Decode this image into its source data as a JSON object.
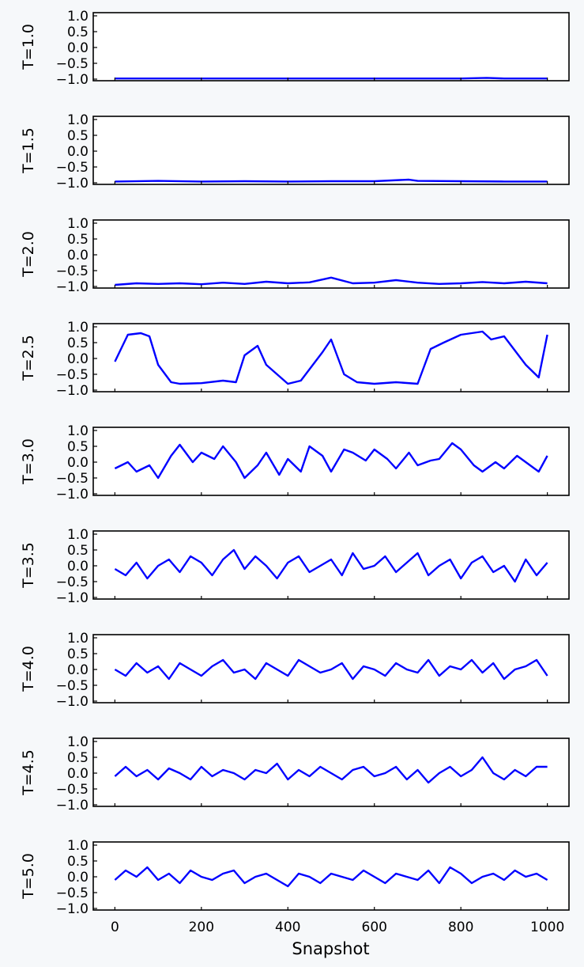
{
  "chart_data": {
    "type": "line",
    "subplot_count": 9,
    "xlabel": "Snapshot",
    "xlim": [
      -50,
      1050
    ],
    "xticks": [
      0,
      200,
      400,
      600,
      800,
      1000
    ],
    "ylim": [
      -1.05,
      1.1
    ],
    "yticks": [
      1.0,
      0.5,
      0.0,
      -0.5,
      -1.0
    ],
    "ytick_labels": [
      "1.0",
      "0.5",
      "0.0",
      "−0.5",
      "−1.0"
    ],
    "line_color": "#0000ff",
    "panels": [
      {
        "label": "T=1.0",
        "x": [
          0,
          100,
          200,
          300,
          400,
          500,
          600,
          700,
          800,
          860,
          900,
          950,
          1000
        ],
        "y": [
          -0.98,
          -0.98,
          -0.98,
          -0.98,
          -0.98,
          -0.98,
          -0.98,
          -0.98,
          -0.98,
          -0.96,
          -0.98,
          -0.98,
          -0.98
        ]
      },
      {
        "label": "T=1.5",
        "x": [
          0,
          100,
          200,
          300,
          400,
          500,
          600,
          680,
          700,
          800,
          900,
          1000
        ],
        "y": [
          -0.96,
          -0.94,
          -0.96,
          -0.95,
          -0.96,
          -0.95,
          -0.95,
          -0.9,
          -0.94,
          -0.95,
          -0.96,
          -0.96
        ]
      },
      {
        "label": "T=2.0",
        "x": [
          0,
          50,
          100,
          150,
          200,
          250,
          300,
          350,
          400,
          450,
          500,
          550,
          600,
          650,
          700,
          750,
          800,
          850,
          900,
          950,
          1000
        ],
        "y": [
          -0.95,
          -0.9,
          -0.92,
          -0.9,
          -0.93,
          -0.88,
          -0.92,
          -0.85,
          -0.9,
          -0.87,
          -0.72,
          -0.9,
          -0.88,
          -0.8,
          -0.88,
          -0.92,
          -0.9,
          -0.86,
          -0.9,
          -0.85,
          -0.9
        ]
      },
      {
        "label": "T=2.5",
        "x": [
          0,
          30,
          60,
          80,
          100,
          130,
          150,
          200,
          250,
          280,
          300,
          330,
          350,
          400,
          430,
          480,
          500,
          530,
          560,
          600,
          650,
          700,
          730,
          760,
          800,
          850,
          870,
          900,
          950,
          980,
          1000
        ],
        "y": [
          -0.1,
          0.75,
          0.8,
          0.7,
          -0.2,
          -0.75,
          -0.8,
          -0.78,
          -0.7,
          -0.75,
          0.1,
          0.4,
          -0.2,
          -0.8,
          -0.7,
          0.2,
          0.6,
          -0.5,
          -0.75,
          -0.8,
          -0.75,
          -0.8,
          0.3,
          0.5,
          0.75,
          0.85,
          0.6,
          0.7,
          -0.2,
          -0.6,
          0.75
        ]
      },
      {
        "label": "T=3.0",
        "x": [
          0,
          30,
          50,
          80,
          100,
          130,
          150,
          180,
          200,
          230,
          250,
          280,
          300,
          330,
          350,
          380,
          400,
          430,
          450,
          480,
          500,
          530,
          550,
          580,
          600,
          630,
          650,
          680,
          700,
          730,
          750,
          780,
          800,
          830,
          850,
          880,
          900,
          930,
          950,
          980,
          1000
        ],
        "y": [
          -0.2,
          0.0,
          -0.3,
          -0.1,
          -0.5,
          0.2,
          0.55,
          0.0,
          0.3,
          0.1,
          0.5,
          0.0,
          -0.5,
          -0.1,
          0.3,
          -0.4,
          0.1,
          -0.3,
          0.5,
          0.2,
          -0.3,
          0.4,
          0.3,
          0.05,
          0.4,
          0.1,
          -0.2,
          0.3,
          -0.1,
          0.05,
          0.1,
          0.6,
          0.4,
          -0.1,
          -0.3,
          0.0,
          -0.2,
          0.2,
          0.0,
          -0.3,
          0.2
        ]
      },
      {
        "label": "T=3.5",
        "x": [
          0,
          25,
          50,
          75,
          100,
          125,
          150,
          175,
          200,
          225,
          250,
          275,
          300,
          325,
          350,
          375,
          400,
          425,
          450,
          475,
          500,
          525,
          550,
          575,
          600,
          625,
          650,
          675,
          700,
          725,
          750,
          775,
          800,
          825,
          850,
          875,
          900,
          925,
          950,
          975,
          1000
        ],
        "y": [
          -0.1,
          -0.3,
          0.1,
          -0.4,
          0.0,
          0.2,
          -0.2,
          0.3,
          0.1,
          -0.3,
          0.2,
          0.5,
          -0.1,
          0.3,
          0.0,
          -0.4,
          0.1,
          0.3,
          -0.2,
          0.0,
          0.2,
          -0.3,
          0.4,
          -0.1,
          0.0,
          0.3,
          -0.2,
          0.1,
          0.4,
          -0.3,
          0.0,
          0.2,
          -0.4,
          0.1,
          0.3,
          -0.2,
          0.0,
          -0.5,
          0.2,
          -0.3,
          0.1
        ]
      },
      {
        "label": "T=4.0",
        "x": [
          0,
          25,
          50,
          75,
          100,
          125,
          150,
          175,
          200,
          225,
          250,
          275,
          300,
          325,
          350,
          375,
          400,
          425,
          450,
          475,
          500,
          525,
          550,
          575,
          600,
          625,
          650,
          675,
          700,
          725,
          750,
          775,
          800,
          825,
          850,
          875,
          900,
          925,
          950,
          975,
          1000
        ],
        "y": [
          0.0,
          -0.2,
          0.2,
          -0.1,
          0.1,
          -0.3,
          0.2,
          0.0,
          -0.2,
          0.1,
          0.3,
          -0.1,
          0.0,
          -0.3,
          0.2,
          0.0,
          -0.2,
          0.3,
          0.1,
          -0.1,
          0.0,
          0.2,
          -0.3,
          0.1,
          0.0,
          -0.2,
          0.2,
          0.0,
          -0.1,
          0.3,
          -0.2,
          0.1,
          0.0,
          0.3,
          -0.1,
          0.2,
          -0.3,
          0.0,
          0.1,
          0.3,
          -0.2
        ]
      },
      {
        "label": "T=4.5",
        "x": [
          0,
          25,
          50,
          75,
          100,
          125,
          150,
          175,
          200,
          225,
          250,
          275,
          300,
          325,
          350,
          375,
          400,
          425,
          450,
          475,
          500,
          525,
          550,
          575,
          600,
          625,
          650,
          675,
          700,
          725,
          750,
          775,
          800,
          825,
          850,
          875,
          900,
          925,
          950,
          975,
          1000
        ],
        "y": [
          -0.1,
          0.2,
          -0.1,
          0.1,
          -0.2,
          0.15,
          0.0,
          -0.2,
          0.2,
          -0.1,
          0.1,
          0.0,
          -0.2,
          0.1,
          0.0,
          0.3,
          -0.2,
          0.1,
          -0.1,
          0.2,
          0.0,
          -0.2,
          0.1,
          0.2,
          -0.1,
          0.0,
          0.2,
          -0.2,
          0.1,
          -0.3,
          0.0,
          0.2,
          -0.1,
          0.1,
          0.5,
          0.0,
          -0.2,
          0.1,
          -0.1,
          0.2,
          0.2
        ]
      },
      {
        "label": "T=5.0",
        "x": [
          0,
          25,
          50,
          75,
          100,
          125,
          150,
          175,
          200,
          225,
          250,
          275,
          300,
          325,
          350,
          375,
          400,
          425,
          450,
          475,
          500,
          525,
          550,
          575,
          600,
          625,
          650,
          675,
          700,
          725,
          750,
          775,
          800,
          825,
          850,
          875,
          900,
          925,
          950,
          975,
          1000
        ],
        "y": [
          -0.1,
          0.2,
          0.0,
          0.3,
          -0.1,
          0.1,
          -0.2,
          0.2,
          0.0,
          -0.1,
          0.1,
          0.2,
          -0.2,
          0.0,
          0.1,
          -0.1,
          -0.3,
          0.1,
          0.0,
          -0.2,
          0.1,
          0.0,
          -0.1,
          0.2,
          0.0,
          -0.2,
          0.1,
          0.0,
          -0.1,
          0.2,
          -0.2,
          0.3,
          0.1,
          -0.2,
          0.0,
          0.1,
          -0.1,
          0.2,
          0.0,
          0.1,
          -0.1
        ]
      }
    ]
  }
}
